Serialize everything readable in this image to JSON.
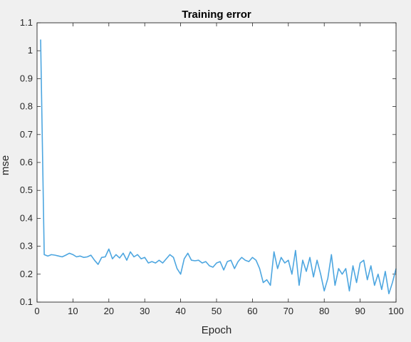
{
  "chart_data": {
    "type": "line",
    "title": "Training error",
    "xlabel": "Epoch",
    "ylabel": "mse",
    "xlim": [
      0,
      100
    ],
    "ylim": [
      0.1,
      1.1
    ],
    "xticks": [
      0,
      10,
      20,
      30,
      40,
      50,
      60,
      70,
      80,
      90,
      100
    ],
    "yticks": [
      0.1,
      0.2,
      0.3,
      0.4,
      0.5,
      0.6,
      0.7,
      0.8,
      0.9,
      1,
      1.1
    ],
    "grid": false,
    "line_color": "#4da6e0",
    "series": [
      {
        "x": [
          1,
          2,
          3,
          4,
          5,
          6,
          7,
          8,
          9,
          10,
          11,
          12,
          13,
          14,
          15,
          16,
          17,
          18,
          19,
          20,
          21,
          22,
          23,
          24,
          25,
          26,
          27,
          28,
          29,
          30,
          31,
          32,
          33,
          34,
          35,
          36,
          37,
          38,
          39,
          40,
          41,
          42,
          43,
          44,
          45,
          46,
          47,
          48,
          49,
          50,
          51,
          52,
          53,
          54,
          55,
          56,
          57,
          58,
          59,
          60,
          61,
          62,
          63,
          64,
          65,
          66,
          67,
          68,
          69,
          70,
          71,
          72,
          73,
          74,
          75,
          76,
          77,
          78,
          79,
          80,
          81,
          82,
          83,
          84,
          85,
          86,
          87,
          88,
          89,
          90,
          91,
          92,
          93,
          94,
          95,
          96,
          97,
          98,
          99,
          100
        ],
        "values": [
          1.04,
          0.27,
          0.265,
          0.27,
          0.268,
          0.265,
          0.262,
          0.268,
          0.275,
          0.27,
          0.262,
          0.265,
          0.26,
          0.262,
          0.268,
          0.25,
          0.235,
          0.26,
          0.262,
          0.29,
          0.255,
          0.27,
          0.258,
          0.275,
          0.25,
          0.28,
          0.262,
          0.27,
          0.255,
          0.26,
          0.24,
          0.245,
          0.24,
          0.25,
          0.24,
          0.255,
          0.27,
          0.26,
          0.22,
          0.2,
          0.255,
          0.275,
          0.25,
          0.248,
          0.25,
          0.24,
          0.245,
          0.23,
          0.225,
          0.24,
          0.245,
          0.215,
          0.245,
          0.25,
          0.22,
          0.245,
          0.26,
          0.25,
          0.245,
          0.26,
          0.25,
          0.22,
          0.17,
          0.18,
          0.16,
          0.28,
          0.22,
          0.26,
          0.24,
          0.25,
          0.2,
          0.285,
          0.16,
          0.25,
          0.21,
          0.26,
          0.19,
          0.25,
          0.2,
          0.14,
          0.185,
          0.27,
          0.16,
          0.22,
          0.2,
          0.22,
          0.14,
          0.23,
          0.17,
          0.24,
          0.25,
          0.18,
          0.23,
          0.16,
          0.2,
          0.145,
          0.21,
          0.13,
          0.17,
          0.22
        ]
      }
    ]
  }
}
